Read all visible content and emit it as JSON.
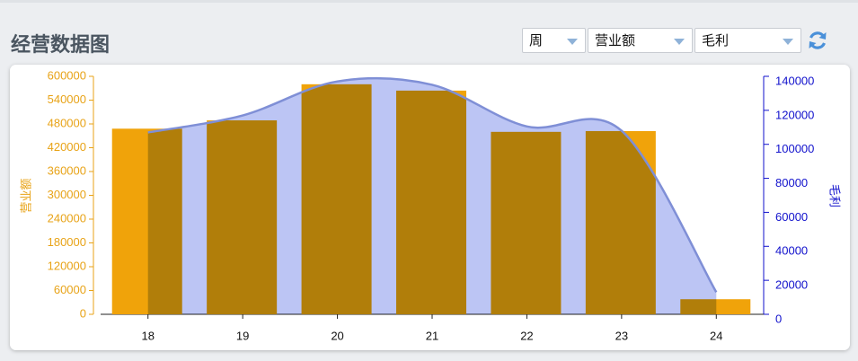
{
  "header": {
    "title": "经营数据图"
  },
  "filters": [
    "周",
    "营业额",
    "毛利"
  ],
  "chart_data": {
    "type": "bar",
    "categories": [
      "18",
      "19",
      "20",
      "21",
      "22",
      "23",
      "24"
    ],
    "ylabel": "营业额",
    "y2label": "毛利",
    "ylim": [
      0,
      600000
    ],
    "yticks": [
      0,
      60000,
      120000,
      180000,
      240000,
      300000,
      360000,
      420000,
      480000,
      540000,
      600000
    ],
    "y2lim": [
      0,
      140000
    ],
    "y2ticks": [
      0,
      20000,
      40000,
      60000,
      80000,
      100000,
      120000,
      140000
    ],
    "ycolor": "#e8a317",
    "y2color": "#1111cc",
    "series": [
      {
        "type": "bar",
        "color": "#f0a30a",
        "values": [
          468000,
          489000,
          580000,
          564000,
          460000,
          462000,
          38000
        ]
      },
      {
        "type": "area",
        "axis": "y2",
        "color": "#7f8fd6",
        "fill": "#bcc5f4",
        "values": [
          107000,
          117000,
          137000,
          135000,
          110500,
          108000,
          13000
        ]
      }
    ]
  }
}
